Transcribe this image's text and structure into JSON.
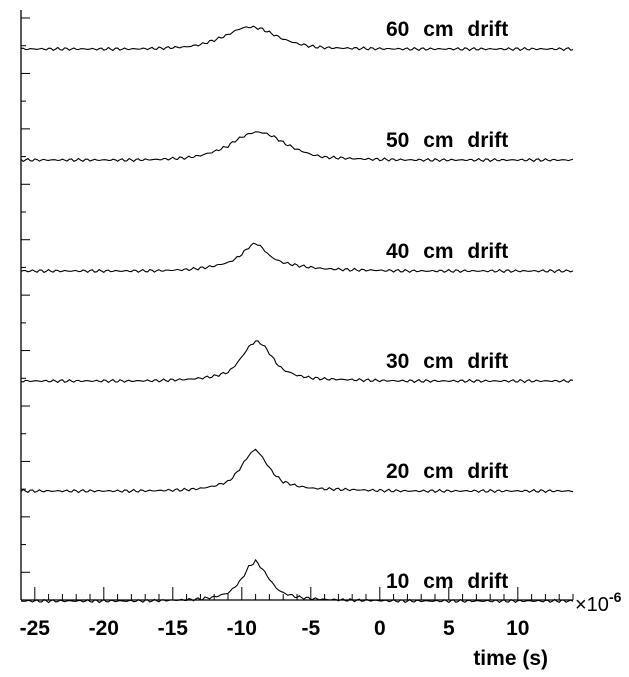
{
  "chart_data": {
    "type": "line",
    "xlabel": "time  (s)",
    "x_multiplier": "×10",
    "x_multiplier_exp": "-6",
    "xlim": [
      -26,
      14
    ],
    "x_ticks": [
      -25,
      -20,
      -15,
      -10,
      -5,
      0,
      5,
      10
    ],
    "x_tick_labels": [
      "-25",
      "-20",
      "-15",
      "-10",
      "-5",
      "0",
      "5",
      "10"
    ],
    "grid": false,
    "x": [
      -26,
      -24,
      -22,
      -20,
      -18,
      -16,
      -14,
      -13,
      -12,
      -11,
      -10.5,
      -10,
      -9.5,
      -9,
      -8.5,
      -8,
      -7.5,
      -7,
      -6,
      -5,
      -4,
      -2,
      0,
      2,
      4,
      6,
      8,
      10,
      12,
      14
    ],
    "series": [
      {
        "name": "10 cm drift",
        "values": [
          0,
          0,
          0,
          0,
          0,
          0.01,
          0.03,
          0.05,
          0.1,
          0.2,
          0.35,
          0.55,
          0.85,
          1.0,
          0.8,
          0.55,
          0.32,
          0.2,
          0.1,
          0.06,
          0.04,
          0.02,
          0.01,
          0,
          0,
          0,
          0,
          0,
          0,
          0
        ]
      },
      {
        "name": "20 cm drift",
        "values": [
          0,
          0,
          0,
          0,
          0,
          0.01,
          0.03,
          0.06,
          0.12,
          0.22,
          0.38,
          0.6,
          0.85,
          1.0,
          0.8,
          0.55,
          0.35,
          0.22,
          0.12,
          0.07,
          0.05,
          0.03,
          0.01,
          0,
          0,
          0,
          0,
          0,
          0,
          0
        ]
      },
      {
        "name": "30 cm drift",
        "values": [
          0,
          0,
          0,
          0,
          0,
          0.01,
          0.04,
          0.07,
          0.12,
          0.22,
          0.38,
          0.6,
          0.85,
          1.0,
          0.92,
          0.7,
          0.45,
          0.28,
          0.14,
          0.08,
          0.05,
          0.03,
          0.01,
          0,
          0,
          0,
          0,
          0,
          0,
          0
        ]
      },
      {
        "name": "40 cm drift",
        "values": [
          0,
          0,
          0,
          0,
          0,
          0.01,
          0.05,
          0.1,
          0.18,
          0.3,
          0.42,
          0.6,
          0.85,
          1.0,
          0.82,
          0.55,
          0.4,
          0.3,
          0.2,
          0.13,
          0.08,
          0.04,
          0.02,
          0,
          0,
          0,
          0,
          0,
          0,
          0
        ]
      },
      {
        "name": "50 cm drift",
        "values": [
          0,
          0,
          0,
          0,
          0,
          0.02,
          0.08,
          0.16,
          0.3,
          0.5,
          0.68,
          0.82,
          0.93,
          1.0,
          0.98,
          0.9,
          0.78,
          0.62,
          0.38,
          0.2,
          0.1,
          0.05,
          0.02,
          0,
          0,
          0,
          0,
          0,
          0,
          0
        ]
      },
      {
        "name": "60 cm drift",
        "values": [
          0,
          0,
          0,
          0,
          0,
          0.03,
          0.1,
          0.2,
          0.4,
          0.65,
          0.82,
          0.95,
          1.0,
          0.98,
          0.9,
          0.75,
          0.6,
          0.45,
          0.25,
          0.12,
          0.06,
          0.03,
          0.01,
          0,
          0,
          0,
          0,
          0,
          0,
          0
        ]
      }
    ]
  }
}
